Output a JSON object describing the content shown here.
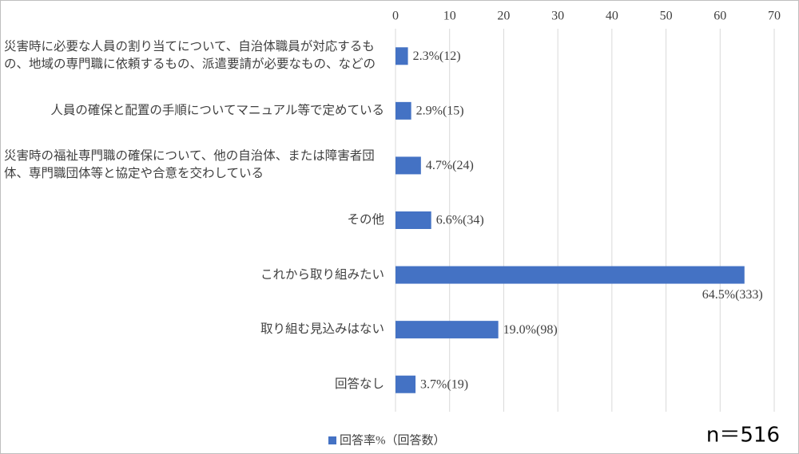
{
  "chart_data": {
    "type": "bar",
    "orientation": "horizontal",
    "categories": [
      "災害時に必要な人員の割り当てについて、自治体職員が対応するもの、地域の専門職に依頼するもの、派遣要請が必要なもの、などの",
      "人員の確保と配置の手順についてマニュアル等で定めている",
      "災害時の福祉専門職の確保について、他の自治体、または障害者団体、専門職団体等と協定や合意を交わしている",
      "その他",
      "これから取り組みたい",
      "取り組む見込みはない",
      "回答なし"
    ],
    "series": [
      {
        "name": "回答率%（回答数）",
        "color": "#4472c4",
        "values": [
          2.3,
          2.9,
          4.7,
          6.6,
          64.5,
          19.0,
          3.7
        ],
        "value_labels": [
          "2.3%(12)",
          "2.9%(15)",
          "4.7%(24)",
          "6.6%(34)",
          "64.5%(333)",
          "19.0%(98)",
          "3.7%(19)"
        ]
      }
    ],
    "xlim": [
      0,
      70
    ],
    "xticks": [
      0,
      10,
      20,
      30,
      40,
      50,
      60,
      70
    ],
    "grid": true,
    "legend": "bottom",
    "annotation": "n＝516"
  }
}
